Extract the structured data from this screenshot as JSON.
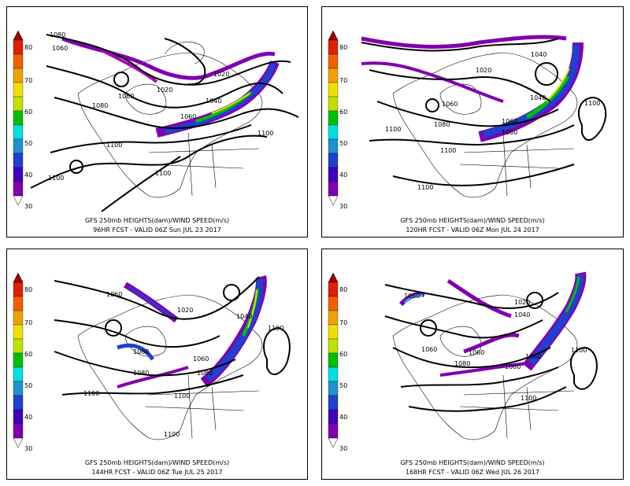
{
  "colorbar": {
    "ticks": [
      "80",
      "70",
      "60",
      "50",
      "40",
      "30"
    ],
    "colors": [
      "#a00000",
      "#f06000",
      "#f0d000",
      "#d8e000",
      "#80e000",
      "#00c000",
      "#00e0e0",
      "#2090d0",
      "#2040d0",
      "#4000c0",
      "#8000b0",
      "#b000c0"
    ]
  },
  "panels": [
    {
      "title": "GFS 250mb HEIGHTS(dam)/WIND SPEED(m/s)",
      "valid": "96HR FCST  -  VALID  06Z  Sun JUL 23 2017",
      "labels": [
        "1080",
        "1060",
        "1020",
        "1020",
        "1060",
        "1040",
        "1080",
        "1060",
        "1100",
        "1100",
        "1100",
        "1100"
      ]
    },
    {
      "title": "GFS 250mb HEIGHTS(dam)/WIND SPEED(m/s)",
      "valid": "120HR FCST  -  VALID  06Z  Mon JUL 24 2017",
      "labels": [
        "1040",
        "1020",
        "1060",
        "1040",
        "1100",
        "1080",
        "1060",
        "1100",
        "1080",
        "1100",
        "1100"
      ]
    },
    {
      "title": "GFS 250mb HEIGHTS(dam)/WIND SPEED(m/s)",
      "valid": "144HR FCST  -  VALID  06Z  Tue JUL 25 2017",
      "labels": [
        "1060",
        "1020",
        "1040",
        "1100",
        "1060",
        "1060",
        "1080",
        "1080",
        "1100",
        "1100",
        "1100"
      ]
    },
    {
      "title": "GFS 250mb HEIGHTS(dam)/WIND SPEED(m/s)",
      "valid": "168HR FCST  -  VALID  06Z  Wed JUL 26 2017",
      "labels": [
        "1060",
        "1020",
        "1040",
        "1060",
        "1060",
        "1060",
        "1080",
        "1080",
        "1100",
        "1100"
      ]
    }
  ]
}
